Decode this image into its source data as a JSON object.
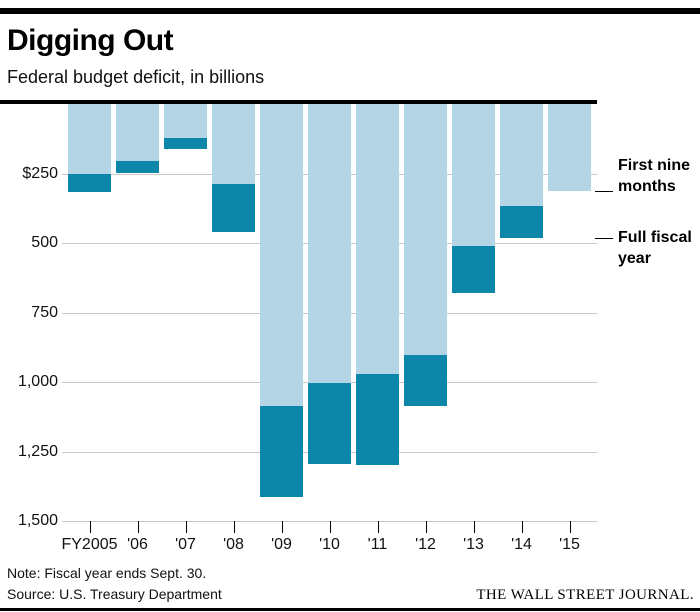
{
  "header": {
    "title": "Digging Out",
    "subtitle": "Federal budget deficit, in billions"
  },
  "chart_data": {
    "type": "bar",
    "stacked": true,
    "y_axis_inverted": true,
    "title": "Digging Out",
    "subtitle": "Federal budget deficit, in billions",
    "xlabel": "",
    "ylabel": "Federal budget deficit, in billions",
    "ylim": [
      0,
      1500
    ],
    "grid": true,
    "legend_position": "right-annotations",
    "categories": [
      "FY2005",
      "'06",
      "'07",
      "'08",
      "'09",
      "'10",
      "'11",
      "'12",
      "'13",
      "'14",
      "'15"
    ],
    "series": [
      {
        "name": "First nine months",
        "color": "#b4d5e5",
        "values": [
          251,
          206,
          121,
          286,
          1086,
          1004,
          971,
          904,
          510,
          366,
          313
        ]
      },
      {
        "name": "Full fiscal year",
        "color": "#0d87a9",
        "values": [
          318,
          248,
          161,
          459,
          1413,
          1294,
          1300,
          1087,
          680,
          483,
          null
        ]
      }
    ],
    "yticks": [
      {
        "label": "$250",
        "value": 250
      },
      {
        "label": "500",
        "value": 500
      },
      {
        "label": "750",
        "value": 750
      },
      {
        "label": "1,000",
        "value": 1000
      },
      {
        "label": "1,250",
        "value": 1250
      },
      {
        "label": "1,500",
        "value": 1500
      }
    ],
    "annotations": [
      {
        "label": "First nine months",
        "category": "'15",
        "series": "First nine months"
      },
      {
        "label": "Full fiscal year",
        "category": "'14",
        "series": "Full fiscal year"
      }
    ]
  },
  "footer": {
    "note": "Note: Fiscal year ends Sept. 30.",
    "source": "Source: U.S. Treasury Department",
    "brand": "THE WALL STREET JOURNAL."
  }
}
